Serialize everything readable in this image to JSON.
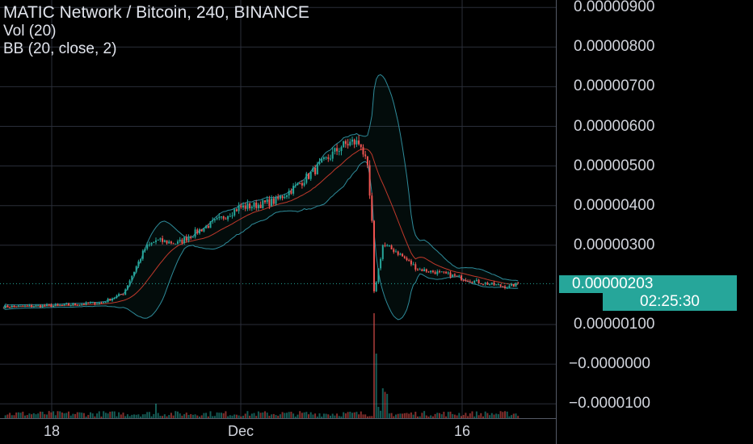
{
  "header": {
    "title": "MATIC Network / Bitcoin, 240, BINANCE",
    "indicator_volume": "Vol (20)",
    "indicator_bb": "BB (20, close, 2)"
  },
  "price_axis": {
    "labels": [
      "0.00000900",
      "0.00000800",
      "0.00000700",
      "0.00000600",
      "0.00000500",
      "0.00000400",
      "0.00000300",
      "0.00000100",
      "−0.0000000",
      "−0.0000100"
    ],
    "last_price": "0.00000203",
    "countdown": "02:25:30"
  },
  "time_axis": {
    "labels": [
      "18",
      "Dec",
      "16"
    ]
  },
  "colors": {
    "background": "#000000",
    "up": "#26a69a",
    "down": "#ef5350",
    "bb_band": "#2e8b9a",
    "bb_basis": "#c0392b",
    "grid": "#2a2e39"
  },
  "chart_data": {
    "type": "candlestick",
    "symbol": "MATIC Network / Bitcoin",
    "interval": "240",
    "exchange": "BINANCE",
    "last_price": 2.03e-06,
    "price_range": [
      -1.2e-06,
      9.2e-06
    ],
    "indicators": [
      "Vol (20)",
      "BB (20, close, 2)"
    ],
    "close_path": [
      [
        0,
        1.45e-06
      ],
      [
        25,
        1.48e-06
      ],
      [
        45,
        1.55e-06
      ],
      [
        55,
        1.78e-06
      ],
      [
        60,
        2.35e-06
      ],
      [
        65,
        2.92e-06
      ],
      [
        70,
        3.12e-06
      ],
      [
        80,
        3.05e-06
      ],
      [
        90,
        3.38e-06
      ],
      [
        100,
        3.68e-06
      ],
      [
        108,
        3.95e-06
      ],
      [
        115,
        4e-06
      ],
      [
        125,
        4.12e-06
      ],
      [
        135,
        4.52e-06
      ],
      [
        145,
        5e-06
      ],
      [
        155,
        5.5e-06
      ],
      [
        160,
        5.6e-06
      ],
      [
        164,
        5.56e-06
      ],
      [
        167,
        4.9e-06
      ],
      [
        169,
        3.55e-06
      ],
      [
        170,
        1.8e-06
      ],
      [
        174,
        3e-06
      ],
      [
        180,
        2.85e-06
      ],
      [
        190,
        2.4e-06
      ],
      [
        205,
        2.25e-06
      ],
      [
        215,
        2.1e-06
      ],
      [
        225,
        2e-06
      ],
      [
        232,
        1.95e-06
      ],
      [
        236,
        2.03e-06
      ]
    ],
    "volume_spike": {
      "at": 170,
      "relative_height": 1.0
    }
  }
}
